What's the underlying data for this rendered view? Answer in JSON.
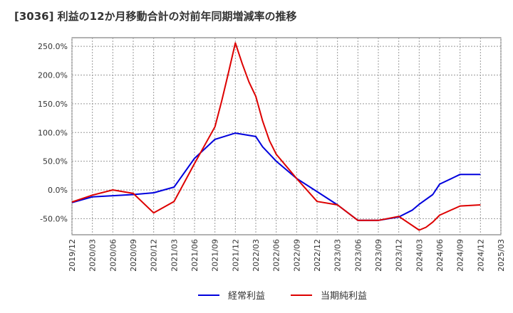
{
  "chart_data": {
    "type": "line",
    "title": "[3036]  利益の12か月移動合計の対前年同期増減率の推移",
    "x_ticks": [
      "2019/12",
      "2020/03",
      "2020/06",
      "2020/09",
      "2020/12",
      "2021/03",
      "2021/06",
      "2021/09",
      "2021/12",
      "2022/03",
      "2022/06",
      "2022/09",
      "2022/12",
      "2023/03",
      "2023/06",
      "2023/09",
      "2023/12",
      "2024/03",
      "2024/06",
      "2024/09",
      "2024/12",
      "2025/03"
    ],
    "y_ticks": [
      "250.0%",
      "200.0%",
      "150.0%",
      "100.0%",
      "50.0%",
      "0.0%",
      "-50.0%"
    ],
    "ylim": [
      -78,
      265
    ],
    "grid": true,
    "legend_position": "bottom",
    "series": [
      {
        "name": "経常利益",
        "color": "#0000dd",
        "points": [
          [
            "2019/12",
            -22
          ],
          [
            "2020/03",
            -12
          ],
          [
            "2020/06",
            -10
          ],
          [
            "2020/09",
            -8
          ],
          [
            "2020/12",
            -5
          ],
          [
            "2021/03",
            5
          ],
          [
            "2021/06",
            55
          ],
          [
            "2021/09",
            88
          ],
          [
            "2021/12",
            99
          ],
          [
            "2022/03",
            93
          ],
          [
            "2022/04",
            75
          ],
          [
            "2022/06",
            50
          ],
          [
            "2022/09",
            20
          ],
          [
            "2022/12",
            -3
          ],
          [
            "2023/03",
            -26
          ],
          [
            "2023/06",
            -53
          ],
          [
            "2023/09",
            -53
          ],
          [
            "2023/12",
            -47
          ],
          [
            "2024/02",
            -35
          ],
          [
            "2024/03",
            -25
          ],
          [
            "2024/05",
            -8
          ],
          [
            "2024/06",
            10
          ],
          [
            "2024/09",
            27
          ],
          [
            "2024/12",
            27
          ]
        ]
      },
      {
        "name": "当期純利益",
        "color": "#dd0000",
        "points": [
          [
            "2019/12",
            -21
          ],
          [
            "2020/03",
            -9
          ],
          [
            "2020/06",
            0
          ],
          [
            "2020/09",
            -6
          ],
          [
            "2020/12",
            -40
          ],
          [
            "2021/03",
            -20
          ],
          [
            "2021/06",
            46
          ],
          [
            "2021/09",
            110
          ],
          [
            "2021/10",
            155
          ],
          [
            "2021/11",
            205
          ],
          [
            "2021/12",
            256
          ],
          [
            "2022/01",
            220
          ],
          [
            "2022/02",
            188
          ],
          [
            "2022/03",
            163
          ],
          [
            "2022/04",
            120
          ],
          [
            "2022/05",
            86
          ],
          [
            "2022/06",
            62
          ],
          [
            "2022/09",
            20
          ],
          [
            "2022/12",
            -20
          ],
          [
            "2023/03",
            -26
          ],
          [
            "2023/06",
            -53
          ],
          [
            "2023/09",
            -53
          ],
          [
            "2023/12",
            -46
          ],
          [
            "2024/03",
            -70
          ],
          [
            "2024/04",
            -65
          ],
          [
            "2024/05",
            -56
          ],
          [
            "2024/06",
            -44
          ],
          [
            "2024/09",
            -28
          ],
          [
            "2024/12",
            -26
          ]
        ]
      }
    ]
  }
}
